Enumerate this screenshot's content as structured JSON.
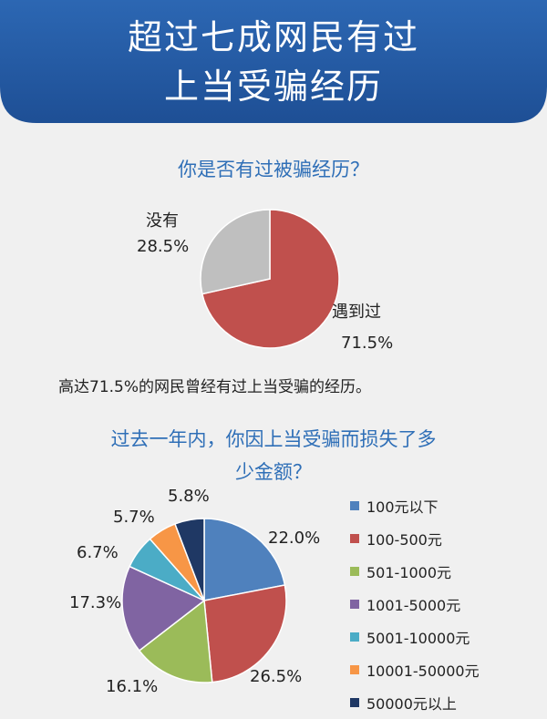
{
  "header": {
    "title_line1": "超过七成网民有过",
    "title_line2": "上当受骗经历"
  },
  "colors": {
    "banner": "#2c67b3",
    "banner_dark": "#1e4f95",
    "question": "#2f6fb7"
  },
  "statement": "高达71.5%的网民曾经有过上当受骗的经历。",
  "chart_data": [
    {
      "type": "pie",
      "title": "你是否有过被骗经历？",
      "categories": [
        "遇到过",
        "没有"
      ],
      "values": [
        71.5,
        28.5
      ],
      "value_labels": [
        "71.5%",
        "28.5%"
      ],
      "colors": [
        "#c0504d",
        "#bfbfbf"
      ]
    },
    {
      "type": "pie",
      "title_line1": "过去一年内，你因上当受骗而损失了多",
      "title_line2": "少金额？",
      "categories": [
        "100元以下",
        "100-500元",
        "501-1000元",
        "1001-5000元",
        "5001-10000元",
        "10001-50000元",
        "50000元以上"
      ],
      "values": [
        22.0,
        26.5,
        16.1,
        17.3,
        6.7,
        5.7,
        5.8
      ],
      "value_labels": [
        "22.0%",
        "26.5%",
        "16.1%",
        "17.3%",
        "6.7%",
        "5.7%",
        "5.8%"
      ],
      "colors": [
        "#4f81bd",
        "#c0504d",
        "#9bbb59",
        "#8064a2",
        "#4bacc6",
        "#f79646",
        "#1f3864"
      ],
      "legend": "right"
    }
  ]
}
